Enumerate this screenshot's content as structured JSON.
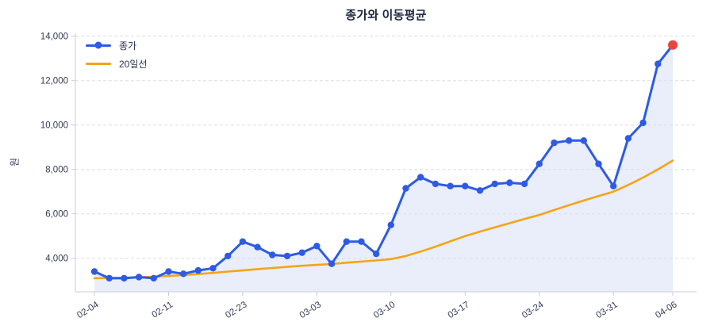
{
  "title": "종가와 이동평균",
  "colors": {
    "close_line": "#2d5be3",
    "ma_line": "#f4a418",
    "last_point": "#e8463c",
    "area_fill": "#e9eefa",
    "grid": "#dadde4",
    "axis": "#c9cdd6",
    "tick_text": "#343c54",
    "title_text": "#1d2742"
  },
  "legend": {
    "items": [
      {
        "label": "종가"
      },
      {
        "label": "20일선"
      }
    ]
  },
  "chart_data": {
    "type": "line",
    "title": "종가와 이동평균",
    "xlabel": "",
    "ylabel": "원",
    "grid": "horizontal-dashed",
    "legend_position": "upper-left",
    "ylim": [
      2490,
      14130
    ],
    "highlight_last_point": true,
    "x_ticks": [
      {
        "index": 0,
        "label": "02-04"
      },
      {
        "index": 5,
        "label": "02-11"
      },
      {
        "index": 10,
        "label": "02-23"
      },
      {
        "index": 15,
        "label": "03-03"
      },
      {
        "index": 20,
        "label": "03-10"
      },
      {
        "index": 25,
        "label": "03-17"
      },
      {
        "index": 30,
        "label": "03-24"
      },
      {
        "index": 35,
        "label": "03-31"
      },
      {
        "index": 39,
        "label": "04-06"
      }
    ],
    "y_ticks": [
      {
        "value": 4000,
        "label": "4,000"
      },
      {
        "value": 6000,
        "label": "6,000"
      },
      {
        "value": 8000,
        "label": "8,000"
      },
      {
        "value": 10000,
        "label": "10,000"
      },
      {
        "value": 12000,
        "label": "12,000"
      },
      {
        "value": 14000,
        "label": "14,000"
      }
    ],
    "series": [
      {
        "name": "종가",
        "style": "line-markers",
        "values": [
          3400,
          3100,
          3100,
          3150,
          3100,
          3400,
          3300,
          3450,
          3550,
          4100,
          4750,
          4500,
          4150,
          4100,
          4250,
          4550,
          3750,
          4750,
          4750,
          4200,
          5500,
          7150,
          7650,
          7350,
          7250,
          7250,
          7050,
          7350,
          7400,
          7350,
          8250,
          9200,
          9300,
          9300,
          8250,
          7250,
          9400,
          10100,
          12750,
          13600
        ]
      },
      {
        "name": "20일선",
        "style": "line",
        "values": [
          3100,
          3110,
          3120,
          3140,
          3170,
          3200,
          3240,
          3290,
          3340,
          3400,
          3450,
          3510,
          3560,
          3610,
          3660,
          3700,
          3740,
          3800,
          3850,
          3900,
          3960,
          4100,
          4300,
          4520,
          4760,
          5000,
          5200,
          5390,
          5580,
          5770,
          5950,
          6170,
          6390,
          6600,
          6800,
          7000,
          7300,
          7630,
          8000,
          8400
        ]
      }
    ]
  }
}
